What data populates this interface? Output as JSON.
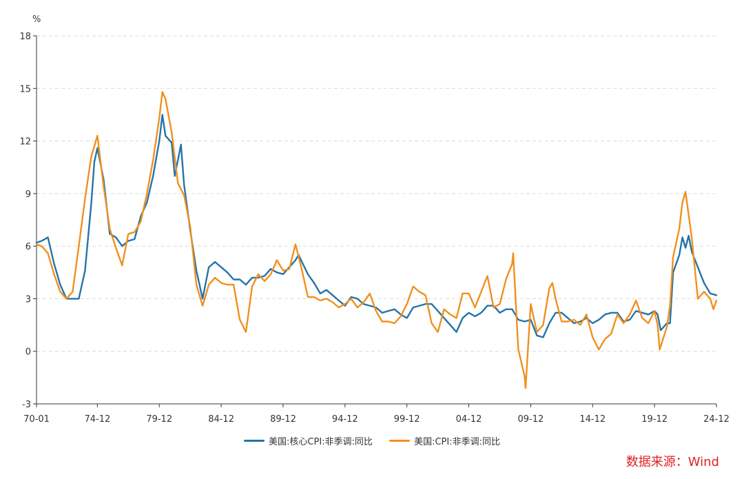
{
  "chart_data": {
    "type": "line",
    "title": "",
    "ylabel": "%",
    "ylim": [
      -3,
      18
    ],
    "yticks": [
      -3,
      0,
      3,
      6,
      9,
      12,
      15,
      18
    ],
    "xlabels": [
      "70-01",
      "74-12",
      "79-12",
      "84-12",
      "89-12",
      "94-12",
      "99-12",
      "04-12",
      "09-12",
      "14-12",
      "19-12",
      "24-12"
    ],
    "legend_position": "bottom",
    "grid": "horizontal-dashed",
    "series": [
      {
        "name": "美国:核心CPI:非季调:同比",
        "color": "#2573a8",
        "points": [
          [
            "70-01",
            6.2
          ],
          [
            "70-06",
            6.3
          ],
          [
            "70-12",
            6.5
          ],
          [
            "71-06",
            5.0
          ],
          [
            "71-12",
            3.8
          ],
          [
            "72-06",
            3.0
          ],
          [
            "72-12",
            3.0
          ],
          [
            "73-06",
            3.0
          ],
          [
            "73-12",
            4.6
          ],
          [
            "74-06",
            8.4
          ],
          [
            "74-09",
            10.8
          ],
          [
            "74-12",
            11.6
          ],
          [
            "75-06",
            9.8
          ],
          [
            "75-12",
            6.7
          ],
          [
            "76-06",
            6.5
          ],
          [
            "76-12",
            6.0
          ],
          [
            "77-06",
            6.3
          ],
          [
            "77-12",
            6.4
          ],
          [
            "78-06",
            7.7
          ],
          [
            "78-12",
            8.5
          ],
          [
            "79-06",
            10.0
          ],
          [
            "79-12",
            12.0
          ],
          [
            "80-03",
            13.5
          ],
          [
            "80-06",
            12.3
          ],
          [
            "80-12",
            11.9
          ],
          [
            "81-03",
            10.0
          ],
          [
            "81-09",
            11.8
          ],
          [
            "81-12",
            9.5
          ],
          [
            "82-06",
            6.9
          ],
          [
            "82-12",
            4.6
          ],
          [
            "83-06",
            3.0
          ],
          [
            "83-12",
            4.8
          ],
          [
            "84-06",
            5.1
          ],
          [
            "84-12",
            4.8
          ],
          [
            "85-06",
            4.5
          ],
          [
            "85-12",
            4.1
          ],
          [
            "86-06",
            4.1
          ],
          [
            "86-12",
            3.8
          ],
          [
            "87-06",
            4.2
          ],
          [
            "87-12",
            4.2
          ],
          [
            "88-06",
            4.3
          ],
          [
            "88-12",
            4.7
          ],
          [
            "89-06",
            4.5
          ],
          [
            "89-12",
            4.4
          ],
          [
            "90-06",
            4.8
          ],
          [
            "90-12",
            5.2
          ],
          [
            "91-03",
            5.5
          ],
          [
            "91-12",
            4.4
          ],
          [
            "92-06",
            3.9
          ],
          [
            "92-12",
            3.3
          ],
          [
            "93-06",
            3.5
          ],
          [
            "93-12",
            3.2
          ],
          [
            "94-06",
            2.9
          ],
          [
            "94-12",
            2.6
          ],
          [
            "95-06",
            3.1
          ],
          [
            "95-12",
            3.0
          ],
          [
            "96-06",
            2.7
          ],
          [
            "96-12",
            2.6
          ],
          [
            "97-06",
            2.5
          ],
          [
            "97-12",
            2.2
          ],
          [
            "98-06",
            2.3
          ],
          [
            "98-12",
            2.4
          ],
          [
            "99-06",
            2.1
          ],
          [
            "99-12",
            1.9
          ],
          [
            "00-06",
            2.5
          ],
          [
            "00-12",
            2.6
          ],
          [
            "01-06",
            2.7
          ],
          [
            "01-12",
            2.7
          ],
          [
            "02-06",
            2.3
          ],
          [
            "02-12",
            1.9
          ],
          [
            "03-06",
            1.5
          ],
          [
            "03-12",
            1.1
          ],
          [
            "04-06",
            1.9
          ],
          [
            "04-12",
            2.2
          ],
          [
            "05-06",
            2.0
          ],
          [
            "05-12",
            2.2
          ],
          [
            "06-06",
            2.6
          ],
          [
            "06-12",
            2.6
          ],
          [
            "07-06",
            2.2
          ],
          [
            "07-12",
            2.4
          ],
          [
            "08-06",
            2.4
          ],
          [
            "08-12",
            1.8
          ],
          [
            "09-06",
            1.7
          ],
          [
            "09-12",
            1.8
          ],
          [
            "10-06",
            0.9
          ],
          [
            "10-12",
            0.8
          ],
          [
            "11-06",
            1.6
          ],
          [
            "11-12",
            2.2
          ],
          [
            "12-06",
            2.2
          ],
          [
            "12-12",
            1.9
          ],
          [
            "13-06",
            1.6
          ],
          [
            "13-12",
            1.7
          ],
          [
            "14-06",
            1.9
          ],
          [
            "14-12",
            1.6
          ],
          [
            "15-06",
            1.8
          ],
          [
            "15-12",
            2.1
          ],
          [
            "16-06",
            2.2
          ],
          [
            "16-12",
            2.2
          ],
          [
            "17-06",
            1.7
          ],
          [
            "17-12",
            1.8
          ],
          [
            "18-06",
            2.3
          ],
          [
            "18-12",
            2.2
          ],
          [
            "19-06",
            2.1
          ],
          [
            "19-12",
            2.3
          ],
          [
            "20-03",
            2.1
          ],
          [
            "20-06",
            1.2
          ],
          [
            "20-12",
            1.6
          ],
          [
            "21-03",
            1.6
          ],
          [
            "21-06",
            4.5
          ],
          [
            "21-12",
            5.5
          ],
          [
            "22-03",
            6.5
          ],
          [
            "22-06",
            5.9
          ],
          [
            "22-09",
            6.6
          ],
          [
            "22-12",
            5.7
          ],
          [
            "23-06",
            4.8
          ],
          [
            "23-12",
            3.9
          ],
          [
            "24-06",
            3.3
          ],
          [
            "24-12",
            3.2
          ]
        ]
      },
      {
        "name": "美国:CPI:非季调:同比",
        "color": "#f0901e",
        "points": [
          [
            "70-01",
            6.1
          ],
          [
            "70-06",
            6.0
          ],
          [
            "70-12",
            5.6
          ],
          [
            "71-06",
            4.4
          ],
          [
            "71-12",
            3.4
          ],
          [
            "72-06",
            3.0
          ],
          [
            "72-12",
            3.4
          ],
          [
            "73-06",
            6.0
          ],
          [
            "73-12",
            8.7
          ],
          [
            "74-06",
            11.1
          ],
          [
            "74-12",
            12.3
          ],
          [
            "75-06",
            9.4
          ],
          [
            "75-12",
            7.0
          ],
          [
            "76-06",
            5.9
          ],
          [
            "76-12",
            4.9
          ],
          [
            "77-06",
            6.7
          ],
          [
            "77-12",
            6.8
          ],
          [
            "78-06",
            7.4
          ],
          [
            "78-12",
            9.0
          ],
          [
            "79-06",
            10.9
          ],
          [
            "79-12",
            13.3
          ],
          [
            "80-03",
            14.8
          ],
          [
            "80-06",
            14.4
          ],
          [
            "80-12",
            12.5
          ],
          [
            "81-06",
            9.6
          ],
          [
            "81-12",
            8.9
          ],
          [
            "82-06",
            7.1
          ],
          [
            "82-12",
            3.8
          ],
          [
            "83-06",
            2.6
          ],
          [
            "83-12",
            3.8
          ],
          [
            "84-06",
            4.2
          ],
          [
            "84-12",
            3.9
          ],
          [
            "85-06",
            3.8
          ],
          [
            "85-12",
            3.8
          ],
          [
            "86-06",
            1.8
          ],
          [
            "86-12",
            1.1
          ],
          [
            "87-06",
            3.7
          ],
          [
            "87-12",
            4.4
          ],
          [
            "88-06",
            4.0
          ],
          [
            "88-12",
            4.4
          ],
          [
            "89-06",
            5.2
          ],
          [
            "89-12",
            4.6
          ],
          [
            "90-06",
            4.7
          ],
          [
            "90-12",
            6.1
          ],
          [
            "91-06",
            4.7
          ],
          [
            "91-12",
            3.1
          ],
          [
            "92-06",
            3.1
          ],
          [
            "92-12",
            2.9
          ],
          [
            "93-06",
            3.0
          ],
          [
            "93-12",
            2.8
          ],
          [
            "94-06",
            2.5
          ],
          [
            "94-12",
            2.7
          ],
          [
            "95-06",
            3.0
          ],
          [
            "95-12",
            2.5
          ],
          [
            "96-06",
            2.8
          ],
          [
            "96-12",
            3.3
          ],
          [
            "97-06",
            2.3
          ],
          [
            "97-12",
            1.7
          ],
          [
            "98-06",
            1.7
          ],
          [
            "98-12",
            1.6
          ],
          [
            "99-06",
            2.0
          ],
          [
            "99-12",
            2.7
          ],
          [
            "00-06",
            3.7
          ],
          [
            "00-12",
            3.4
          ],
          [
            "01-06",
            3.2
          ],
          [
            "01-12",
            1.6
          ],
          [
            "02-06",
            1.1
          ],
          [
            "02-12",
            2.4
          ],
          [
            "03-06",
            2.1
          ],
          [
            "03-12",
            1.9
          ],
          [
            "04-06",
            3.3
          ],
          [
            "04-12",
            3.3
          ],
          [
            "05-06",
            2.5
          ],
          [
            "05-12",
            3.4
          ],
          [
            "06-06",
            4.3
          ],
          [
            "06-12",
            2.5
          ],
          [
            "07-06",
            2.7
          ],
          [
            "07-12",
            4.1
          ],
          [
            "08-06",
            5.0
          ],
          [
            "08-07",
            5.6
          ],
          [
            "08-12",
            0.1
          ],
          [
            "09-06",
            -1.4
          ],
          [
            "09-07",
            -2.1
          ],
          [
            "09-12",
            2.7
          ],
          [
            "10-06",
            1.1
          ],
          [
            "10-12",
            1.5
          ],
          [
            "11-06",
            3.6
          ],
          [
            "11-09",
            3.9
          ],
          [
            "11-12",
            3.0
          ],
          [
            "12-06",
            1.7
          ],
          [
            "12-12",
            1.7
          ],
          [
            "13-06",
            1.8
          ],
          [
            "13-12",
            1.5
          ],
          [
            "14-06",
            2.1
          ],
          [
            "14-12",
            0.8
          ],
          [
            "15-06",
            0.1
          ],
          [
            "15-12",
            0.7
          ],
          [
            "16-06",
            1.0
          ],
          [
            "16-12",
            2.1
          ],
          [
            "17-06",
            1.6
          ],
          [
            "17-12",
            2.1
          ],
          [
            "18-06",
            2.9
          ],
          [
            "18-12",
            1.9
          ],
          [
            "19-06",
            1.6
          ],
          [
            "19-12",
            2.3
          ],
          [
            "20-03",
            1.5
          ],
          [
            "20-05",
            0.1
          ],
          [
            "20-12",
            1.4
          ],
          [
            "21-03",
            2.6
          ],
          [
            "21-06",
            5.4
          ],
          [
            "21-12",
            7.0
          ],
          [
            "22-03",
            8.5
          ],
          [
            "22-06",
            9.1
          ],
          [
            "22-12",
            6.5
          ],
          [
            "23-06",
            3.0
          ],
          [
            "23-12",
            3.4
          ],
          [
            "24-06",
            3.0
          ],
          [
            "24-09",
            2.4
          ],
          [
            "24-12",
            2.9
          ]
        ]
      }
    ]
  },
  "source_label": "数据来源：Wind"
}
